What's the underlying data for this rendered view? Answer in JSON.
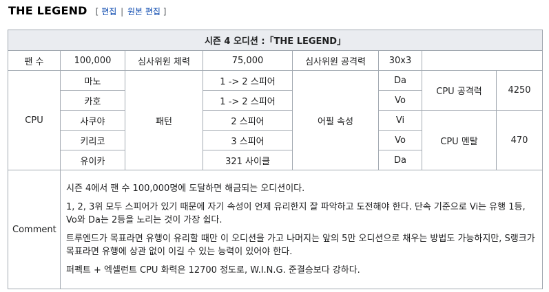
{
  "section": {
    "title": "THE LEGEND",
    "edit_open": "[",
    "edit_label": "편집",
    "edit_sep": "|",
    "edit_source_label": "원본 편집",
    "edit_close": "]"
  },
  "table": {
    "caption": "시즌 4 오디션 :「THE LEGEND」",
    "stats": {
      "fans_label": "팬 수",
      "fans_value": "100,000",
      "judge_hp_label": "심사위원 체력",
      "judge_hp_value": "75,000",
      "judge_atk_label": "심사위원 공격력",
      "judge_atk_value": "30x3"
    },
    "cpu_label": "CPU",
    "pattern_label": "패턴",
    "appeal_label": "어필 속성",
    "cpu_attack_label": "CPU 공격력",
    "cpu_attack_value": "4250",
    "cpu_mental_label": "CPU 멘탈",
    "cpu_mental_value": "470",
    "cpus": [
      {
        "name": "마노",
        "pattern": "1 -> 2 스피어",
        "attr": "Da"
      },
      {
        "name": "카호",
        "pattern": "1 -> 2 스피어",
        "attr": "Vo"
      },
      {
        "name": "사쿠야",
        "pattern": "2 스피어",
        "attr": "Vi"
      },
      {
        "name": "키리코",
        "pattern": "3 스피어",
        "attr": "Vo"
      },
      {
        "name": "유이카",
        "pattern": "321 사이클",
        "attr": "Da"
      }
    ],
    "comment_label": "Comment",
    "comments": [
      "시즌 4에서 팬 수 100,000명에 도달하면 해금되는 오디션이다.",
      "1, 2, 3위 모두 스피어가 있기 때문에 자기 속성이 언제 유리한지 잘 파악하고 도전해야 한다. 단속 기준으로 Vi는 유행 1등, Vo와 Da는 2등을 노리는 것이 가장 쉽다.",
      "트루엔드가 목표라면 유행이 유리할 때만 이 오디션을 가고 나머지는 앞의 5만 오디션으로 채우는 방법도 가능하지만, S랭크가 목표라면 유행에 상관 없이 이길 수 있는 능력이 있어야 한다.",
      "퍼펙트 + 엑셀런트 CPU 화력은 12700 정도로, W.I.N.G. 준결승보다 강하다."
    ]
  }
}
